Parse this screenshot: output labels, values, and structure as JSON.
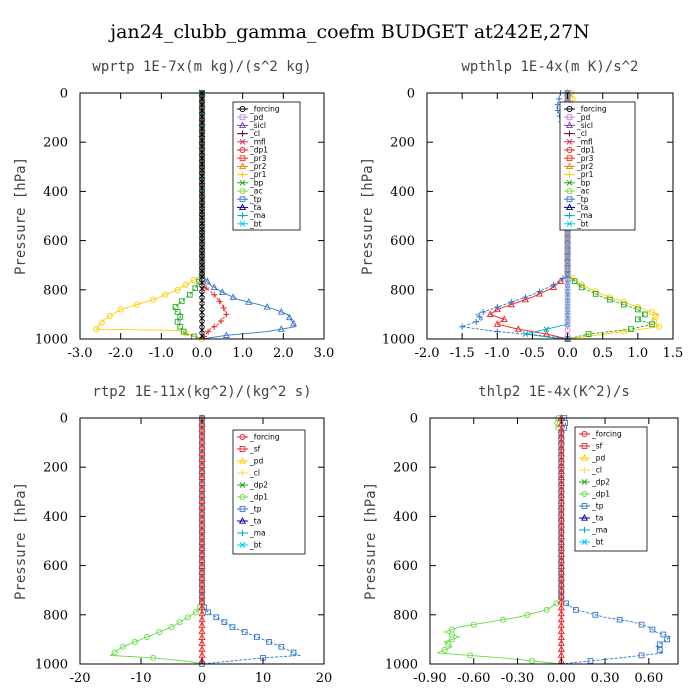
{
  "figure_title": "jan24_clubb_gamma_coefm  BUDGET at242E,27N",
  "colors": {
    "forcing": "#000000",
    "pd": "#cc88dd",
    "sicl": "#7744bb",
    "cl": "#770044",
    "mfl": "#cc3366",
    "dp1": "#ee2222",
    "pr3": "#ff3311",
    "pr2": "#ee8800",
    "pr1": "#ffcc00",
    "bp": "#22aa22",
    "ac": "#77dd33",
    "tp": "#3377cc",
    "ta": "#0000aa",
    "ma": "#00aacc",
    "bt": "#00ccee",
    "sf": "#ee2222",
    "dp2": "#22aa22",
    "forcing_red": "#ee2222",
    "pd_yellow": "#ffcc00",
    "cl_yellow": "#ffdd33",
    "dp1_green": "#66dd44"
  },
  "chart_data": [
    {
      "type": "line",
      "title": "wprtp  1E-7x(m kg)/(s^2 kg)",
      "xlabel": "",
      "ylabel": "Pressure [hPa]",
      "xlim": [
        -3.0,
        3.0
      ],
      "ylim": [
        1000,
        0
      ],
      "xticks": [
        "-3.0",
        "-2.0",
        "-1.0",
        "0.0",
        "1.0",
        "2.0",
        "3.0"
      ],
      "yticks": [
        "0",
        "200",
        "400",
        "600",
        "800",
        "1000"
      ],
      "legend": {
        "position": "top-right",
        "entries": [
          {
            "name": "_forcing",
            "color": "#000000"
          },
          {
            "name": "_pd",
            "color": "#cc88dd"
          },
          {
            "name": "_sicl",
            "color": "#7744bb"
          },
          {
            "name": "_cl",
            "color": "#770044"
          },
          {
            "name": "_mfl",
            "color": "#cc3366"
          },
          {
            "name": "_dp1",
            "color": "#ee2222"
          },
          {
            "name": "_pr3",
            "color": "#ff3311"
          },
          {
            "name": "_pr2",
            "color": "#ee8800"
          },
          {
            "name": "_pr1",
            "color": "#ffcc00"
          },
          {
            "name": "_bp",
            "color": "#22aa22"
          },
          {
            "name": "_ac",
            "color": "#77dd33"
          },
          {
            "name": "_tp",
            "color": "#3377cc"
          },
          {
            "name": "_ta",
            "color": "#0000aa"
          },
          {
            "name": "_ma",
            "color": "#00aacc"
          },
          {
            "name": "_bt",
            "color": "#00ccee"
          }
        ]
      },
      "series": [
        {
          "name": "_pr1",
          "color": "#ffcc00",
          "x": [
            0,
            0,
            -0.3,
            -0.6,
            -0.9,
            -1.2,
            -1.6,
            -2.0,
            -2.4,
            -2.6,
            -0.6,
            0
          ],
          "y": [
            0,
            740,
            770,
            800,
            820,
            840,
            860,
            880,
            920,
            960,
            965,
            1000
          ]
        },
        {
          "name": "_bp",
          "color": "#22aa22",
          "x": [
            0,
            0,
            -0.1,
            -0.3,
            -0.6,
            -0.7,
            -0.5,
            -0.6,
            -0.5,
            -0.4,
            0
          ],
          "y": [
            0,
            740,
            780,
            820,
            860,
            880,
            900,
            930,
            960,
            980,
            1000
          ]
        },
        {
          "name": "_tp",
          "color": "#3377cc",
          "x": [
            0,
            0,
            0.2,
            0.5,
            0.9,
            1.4,
            1.8,
            2.1,
            2.3,
            1.6,
            0.6,
            0
          ],
          "y": [
            0,
            740,
            780,
            810,
            840,
            860,
            880,
            900,
            950,
            970,
            985,
            1000
          ]
        },
        {
          "name": "_dp1",
          "color": "#ee2222",
          "x": [
            0,
            0,
            0.3,
            0.5,
            0.6,
            0.4,
            0.2,
            0.1,
            0
          ],
          "y": [
            0,
            780,
            820,
            860,
            900,
            940,
            960,
            980,
            1000
          ]
        },
        {
          "name": "_forcing",
          "color": "#000000",
          "x": [
            0,
            0
          ],
          "y": [
            0,
            1000
          ]
        }
      ]
    },
    {
      "type": "line",
      "title": "wpthlp  1E-4x(m K)/s^2",
      "xlabel": "",
      "ylabel": "Pressure [hPa]",
      "xlim": [
        -2.0,
        1.5
      ],
      "ylim": [
        1000,
        0
      ],
      "xticks": [
        "-2.0",
        "-1.5",
        "-1.0",
        "-0.5",
        "0.0",
        "0.5",
        "1.0",
        "1.5"
      ],
      "yticks": [
        "0",
        "200",
        "400",
        "600",
        "800",
        "1000"
      ],
      "legend": {
        "position": "top-right",
        "entries": [
          {
            "name": "_forcing",
            "color": "#000000"
          },
          {
            "name": "_pd",
            "color": "#cc88dd"
          },
          {
            "name": "_sicl",
            "color": "#7744bb"
          },
          {
            "name": "_cl",
            "color": "#770044"
          },
          {
            "name": "_mfl",
            "color": "#cc3366"
          },
          {
            "name": "_dp1",
            "color": "#ee2222"
          },
          {
            "name": "_pr3",
            "color": "#ff3311"
          },
          {
            "name": "_pr2",
            "color": "#ee8800"
          },
          {
            "name": "_pr1",
            "color": "#ffcc00"
          },
          {
            "name": "_bp",
            "color": "#22aa22"
          },
          {
            "name": "_ac",
            "color": "#77dd33"
          },
          {
            "name": "_tp",
            "color": "#3377cc"
          },
          {
            "name": "_ta",
            "color": "#0000aa"
          },
          {
            "name": "_ma",
            "color": "#00aacc"
          },
          {
            "name": "_bt",
            "color": "#00ccee"
          }
        ]
      },
      "series": [
        {
          "name": "_pr1",
          "color": "#ffcc00",
          "x": [
            0.05,
            0.1,
            0.05,
            0,
            0,
            0.2,
            0.5,
            0.8,
            1.1,
            1.3,
            1.2,
            1.3,
            0.8,
            0
          ],
          "y": [
            0,
            60,
            150,
            300,
            740,
            780,
            820,
            850,
            880,
            900,
            920,
            950,
            970,
            1000
          ]
        },
        {
          "name": "_bp",
          "color": "#22aa22",
          "x": [
            0,
            0,
            0.2,
            0.5,
            0.8,
            1.0,
            1.1,
            1.0,
            1.2,
            0.9,
            0.3,
            0
          ],
          "y": [
            0,
            740,
            790,
            830,
            860,
            880,
            900,
            920,
            940,
            960,
            980,
            1000
          ]
        },
        {
          "name": "_dp1",
          "color": "#ee2222",
          "x": [
            0,
            0,
            -0.2,
            -0.5,
            -0.8,
            -1.0,
            -1.1,
            -0.9,
            -1.0,
            -0.7,
            -0.3,
            0
          ],
          "y": [
            0,
            740,
            790,
            830,
            860,
            880,
            900,
            920,
            940,
            960,
            980,
            1000
          ]
        },
        {
          "name": "_tp",
          "color": "#3377cc",
          "x": [
            -0.1,
            -0.15,
            -0.05,
            0,
            0,
            -0.2,
            -0.5,
            -0.8,
            -1.1,
            -1.3,
            -1.2,
            -1.5,
            -1.0,
            -0.4,
            0
          ],
          "y": [
            0,
            60,
            150,
            300,
            740,
            780,
            820,
            850,
            880,
            900,
            920,
            950,
            970,
            985,
            1000
          ]
        },
        {
          "name": "_ma",
          "color": "#00aacc",
          "x": [
            0,
            0,
            -0.3,
            -0.6,
            -0.2,
            0
          ],
          "y": [
            0,
            940,
            960,
            980,
            995,
            1000
          ]
        },
        {
          "name": "_pd",
          "color": "#cc88dd",
          "x": [
            0,
            0
          ],
          "y": [
            0,
            1000
          ]
        }
      ]
    },
    {
      "type": "line",
      "title": "rtp2  1E-11x(kg^2)/(kg^2 s)",
      "xlabel": "",
      "ylabel": "Pressure [hPa]",
      "xlim": [
        -20,
        20
      ],
      "ylim": [
        1000,
        0
      ],
      "xticks": [
        "-20",
        "-10",
        "0",
        "10",
        "20"
      ],
      "yticks": [
        "0",
        "200",
        "400",
        "600",
        "800",
        "1000"
      ],
      "legend": {
        "position": "top-right",
        "entries": [
          {
            "name": "_forcing",
            "color": "#ee2222"
          },
          {
            "name": "_sf",
            "color": "#ee2222"
          },
          {
            "name": "_pd",
            "color": "#ffcc00"
          },
          {
            "name": "_cl",
            "color": "#ffdd33"
          },
          {
            "name": "_dp2",
            "color": "#22aa22"
          },
          {
            "name": "_dp1",
            "color": "#66dd44"
          },
          {
            "name": "_tp",
            "color": "#3377cc"
          },
          {
            "name": "_ta",
            "color": "#0000aa"
          },
          {
            "name": "_ma",
            "color": "#00aacc"
          },
          {
            "name": "_bt",
            "color": "#00ccee"
          }
        ]
      },
      "series": [
        {
          "name": "_dp1",
          "color": "#66dd44",
          "x": [
            0,
            0,
            -1,
            -3,
            -5,
            -7,
            -9,
            -11,
            -13,
            -15,
            -8,
            -2,
            0
          ],
          "y": [
            0,
            760,
            790,
            820,
            850,
            870,
            890,
            910,
            930,
            965,
            975,
            990,
            1000
          ]
        },
        {
          "name": "_tp",
          "color": "#3377cc",
          "x": [
            0,
            0,
            1,
            3,
            5,
            7,
            9,
            11,
            13,
            16,
            10,
            4,
            0
          ],
          "y": [
            0,
            760,
            790,
            820,
            850,
            870,
            890,
            910,
            930,
            965,
            975,
            990,
            1000
          ]
        },
        {
          "name": "_forcing",
          "color": "#ee2222",
          "x": [
            0,
            0
          ],
          "y": [
            0,
            1000
          ]
        }
      ]
    },
    {
      "type": "line",
      "title": "thlp2  1E-4x(K^2)/s",
      "xlabel": "",
      "ylabel": "Pressure [hPa]",
      "xlim": [
        -0.9,
        0.8
      ],
      "ylim": [
        1000,
        0
      ],
      "xticks": [
        "-0.90",
        "-0.60",
        "-0.30",
        "0.00",
        "0.30",
        "0.60"
      ],
      "yticks": [
        "0",
        "200",
        "400",
        "600",
        "800",
        "1000"
      ],
      "legend": {
        "position": "top-right",
        "entries": [
          {
            "name": "_forcing",
            "color": "#ee2222"
          },
          {
            "name": "_sf",
            "color": "#ee2222"
          },
          {
            "name": "_pd",
            "color": "#ffcc00"
          },
          {
            "name": "_cl",
            "color": "#ffdd33"
          },
          {
            "name": "_dp2",
            "color": "#22aa22"
          },
          {
            "name": "_dp1",
            "color": "#66dd44"
          },
          {
            "name": "_tp",
            "color": "#3377cc"
          },
          {
            "name": "_ta",
            "color": "#0000aa"
          },
          {
            "name": "_ma",
            "color": "#00aacc"
          },
          {
            "name": "_bt",
            "color": "#00ccee"
          }
        ]
      },
      "series": [
        {
          "name": "_dp1",
          "color": "#66dd44",
          "x": [
            -0.02,
            -0.03,
            0,
            0,
            -0.1,
            -0.3,
            -0.5,
            -0.7,
            -0.8,
            -0.7,
            -0.8,
            -0.75,
            -0.85,
            -0.4,
            0
          ],
          "y": [
            0,
            30,
            60,
            740,
            780,
            810,
            830,
            850,
            870,
            890,
            910,
            930,
            955,
            975,
            1000
          ]
        },
        {
          "name": "_tp",
          "color": "#3377cc",
          "x": [
            0.02,
            0.03,
            0,
            0,
            0.1,
            0.3,
            0.5,
            0.6,
            0.65,
            0.75,
            0.7,
            0.65,
            0.7,
            0.4,
            0
          ],
          "y": [
            0,
            30,
            60,
            740,
            780,
            810,
            830,
            850,
            870,
            890,
            910,
            930,
            955,
            975,
            1000
          ]
        },
        {
          "name": "_forcing",
          "color": "#ee2222",
          "x": [
            0,
            0
          ],
          "y": [
            0,
            1000
          ]
        }
      ]
    }
  ]
}
